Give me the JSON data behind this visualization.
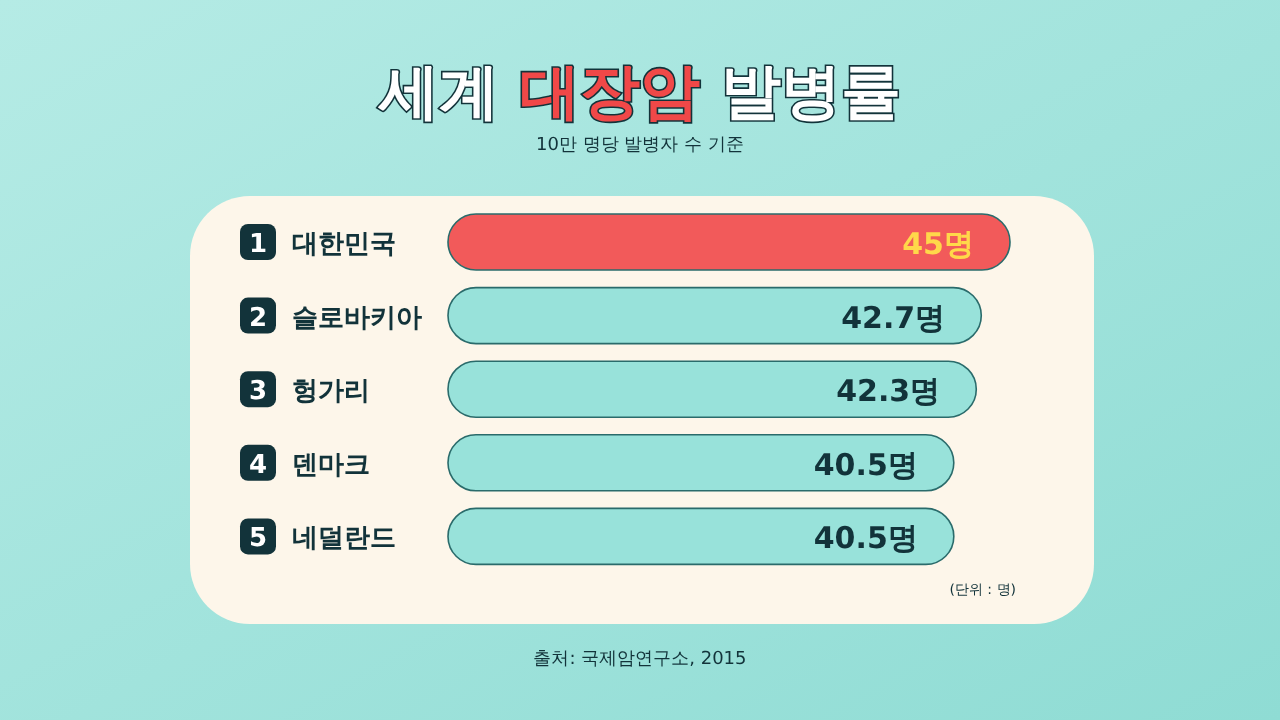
{
  "chart_data": {
    "type": "bar",
    "orientation": "horizontal",
    "title": "세계 대장암 발병률",
    "subtitle": "10만 명당 발병자 수 기준",
    "categories": [
      "대한민국",
      "슬로바키아",
      "헝가리",
      "덴마크",
      "네덜란드"
    ],
    "values": [
      45,
      42.7,
      42.3,
      40.5,
      40.5
    ],
    "colors": [
      "#f25a5a",
      "#98e2da",
      "#98e2da",
      "#98e2da",
      "#98e2da"
    ],
    "value_labels": [
      "45명",
      "42.7명",
      "42.3명",
      "40.5명",
      "40.5명"
    ],
    "annotations": [
      "1",
      "2",
      "3",
      "4",
      "5",
      "(단위 : 명)",
      "출처: 국제암연구소, 2015"
    ]
  }
}
